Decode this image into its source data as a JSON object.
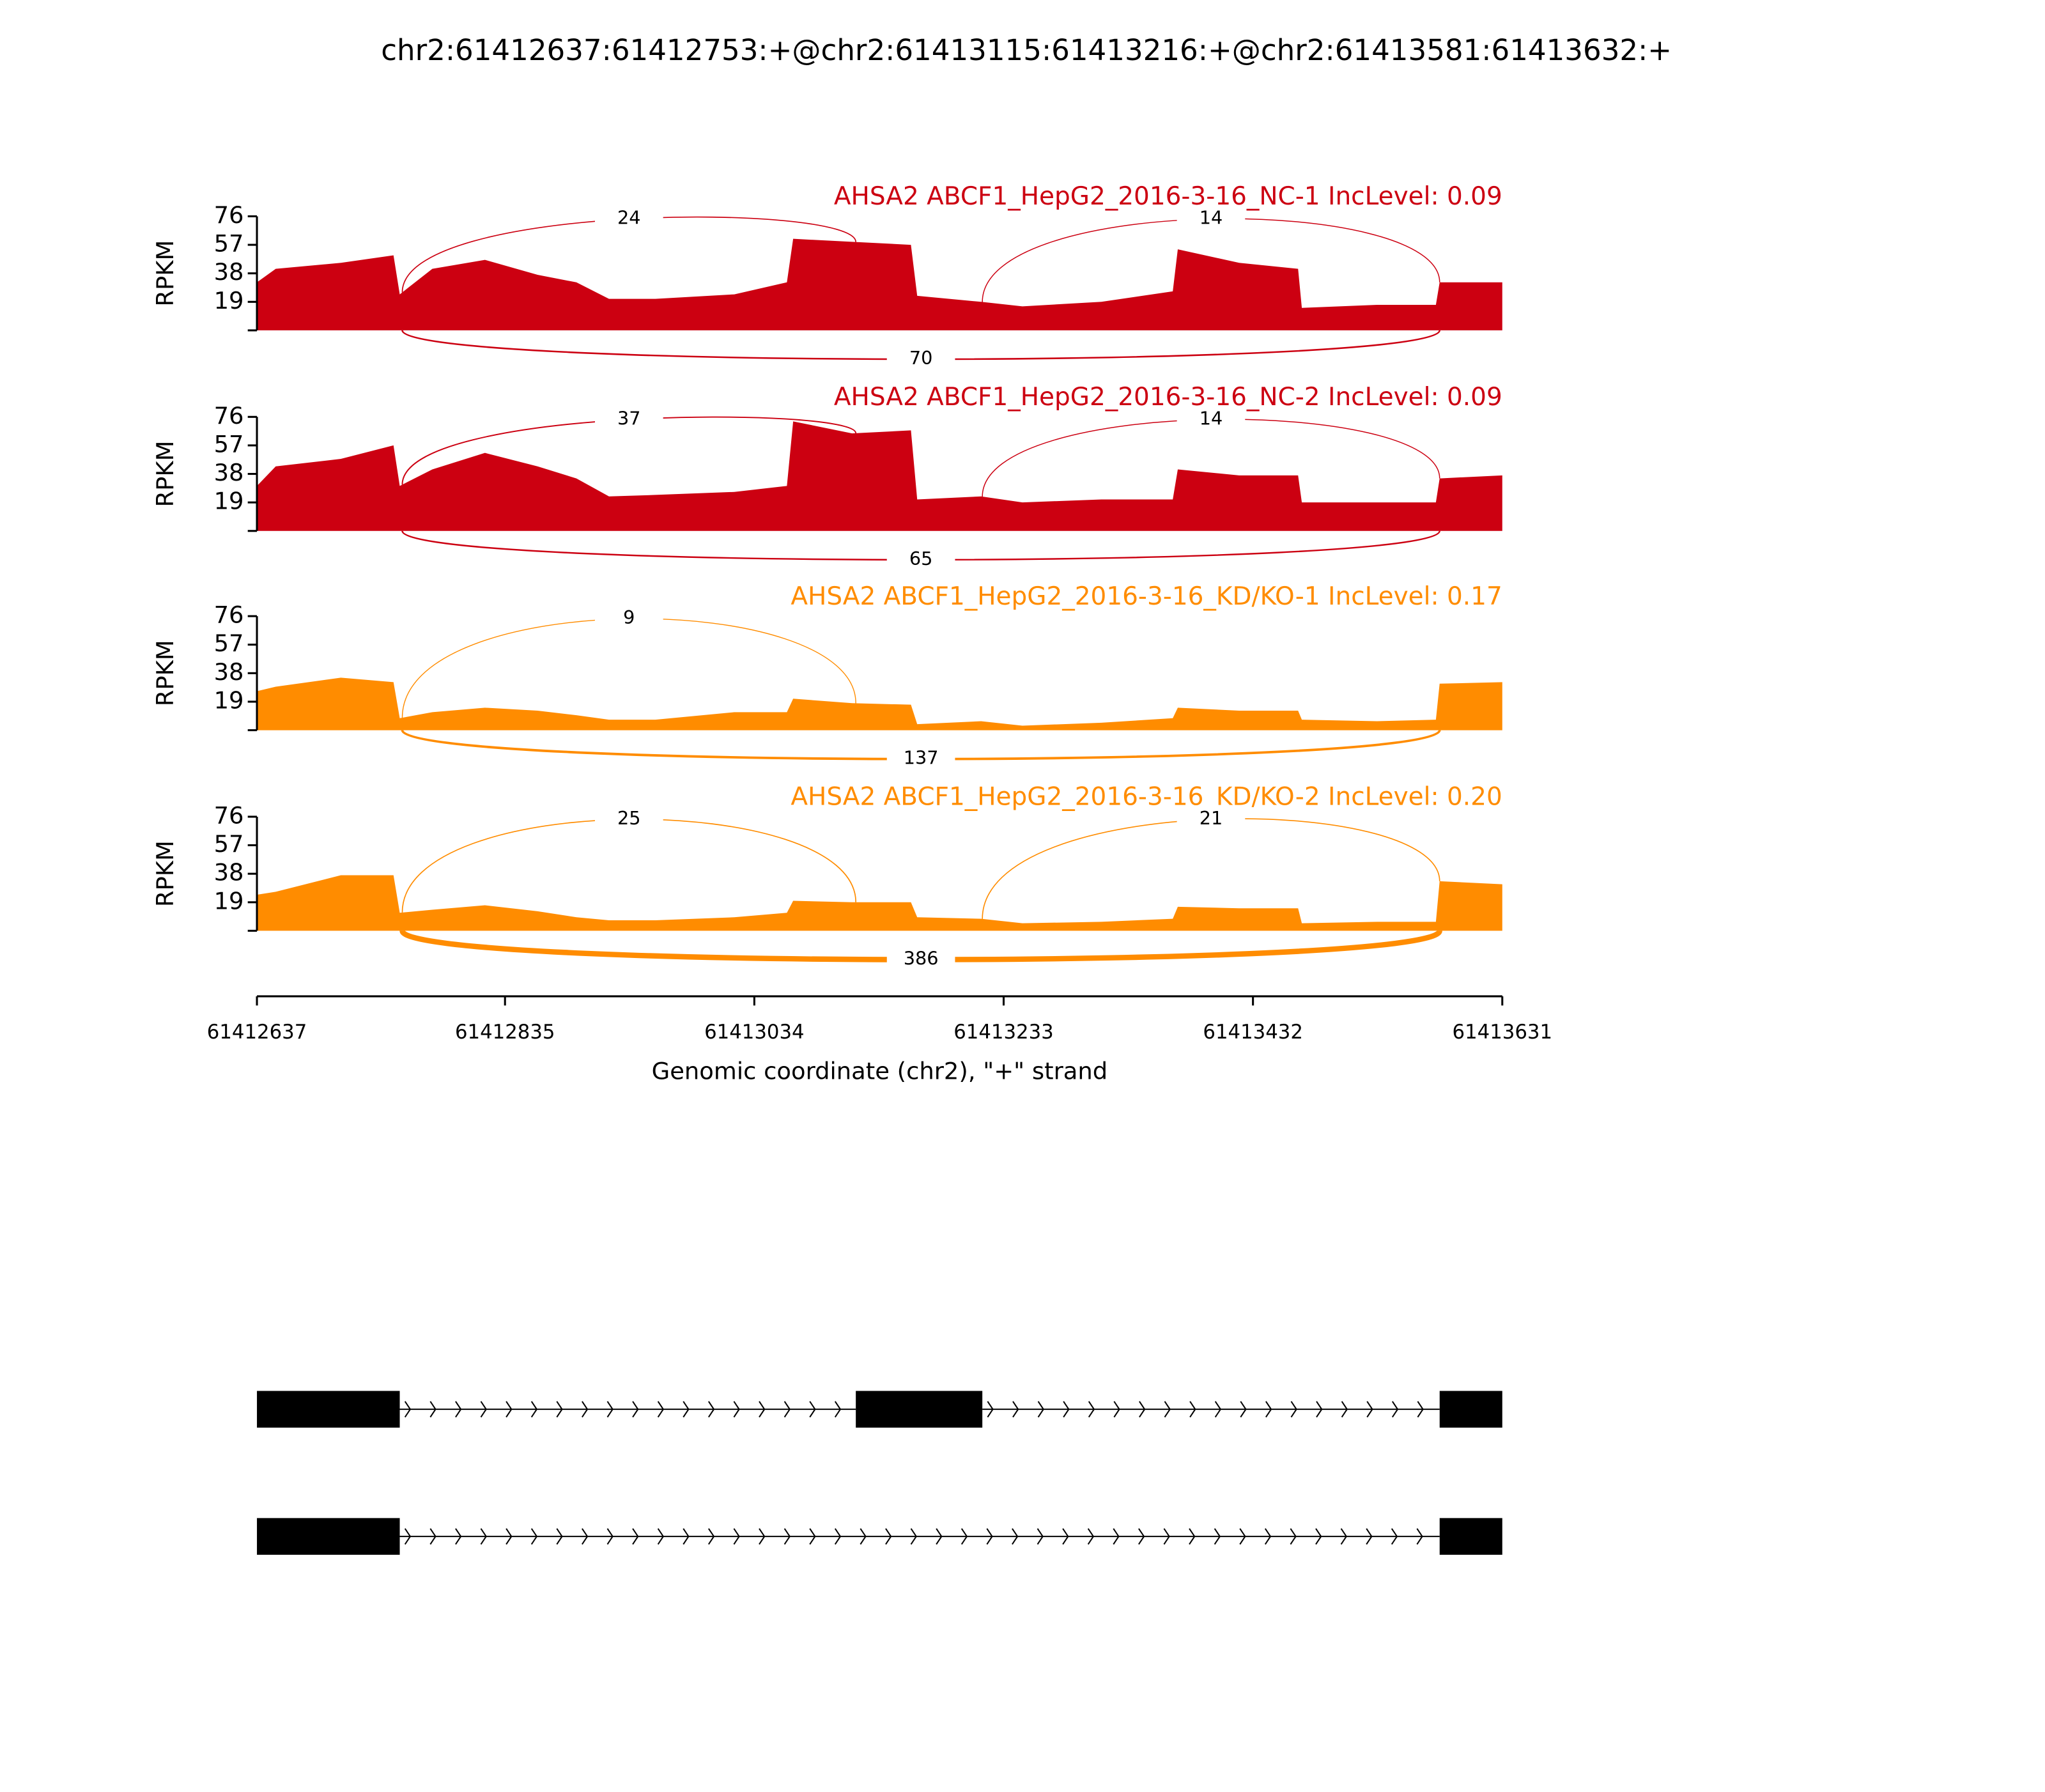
{
  "chart_data": {
    "type": "area",
    "title": "chr2:61412637:61412753:+@chr2:61413115:61413216:+@chr2:61413581:61413632:+",
    "ylabel": "RPKM",
    "xlabel": "Genomic coordinate (chr2), \"+\" strand",
    "xlim": [
      61412637,
      61413631
    ],
    "xticks": [
      61412637,
      61412835,
      61413034,
      61413233,
      61413432,
      61413631
    ],
    "ylim": [
      0,
      76
    ],
    "yticks": [
      19,
      38,
      57,
      76
    ],
    "x": [
      61412637,
      61412652,
      61412704,
      61412746,
      61412751,
      61412777,
      61412819,
      61412861,
      61412892,
      61412918,
      61412955,
      61413018,
      61413060,
      61413065,
      61413112,
      61413159,
      61413164,
      61413215,
      61413248,
      61413311,
      61413368,
      61413372,
      61413421,
      61413468,
      61413471,
      61413531,
      61413578,
      61413581,
      61413631
    ],
    "series": [
      {
        "name": "AHSA2 ABCF1_HepG2_2016-3-16_NC-1 IncLevel: 0.09",
        "color": "#cc0011",
        "values": [
          32,
          41,
          45,
          50,
          24,
          41,
          47,
          37,
          32,
          21,
          21,
          24,
          32,
          61,
          59,
          57,
          23,
          19,
          16,
          19,
          26,
          54,
          45,
          41,
          15,
          17,
          17,
          32,
          32
        ],
        "junctions": [
          {
            "from": 61412753,
            "to": 61413115,
            "count": 24
          },
          {
            "from": 61413216,
            "to": 61413581,
            "count": 14
          },
          {
            "from": 61412753,
            "to": 61413581,
            "count": 70
          }
        ]
      },
      {
        "name": "AHSA2 ABCF1_HepG2_2016-3-16_NC-2 IncLevel: 0.09",
        "color": "#cc0011",
        "values": [
          30,
          43,
          48,
          57,
          30,
          41,
          52,
          43,
          35,
          23,
          24,
          26,
          30,
          73,
          65,
          67,
          21,
          23,
          19,
          21,
          21,
          41,
          37,
          37,
          19,
          19,
          19,
          35,
          37
        ],
        "junctions": [
          {
            "from": 61412753,
            "to": 61413115,
            "count": 37
          },
          {
            "from": 61413216,
            "to": 61413581,
            "count": 14
          },
          {
            "from": 61412753,
            "to": 61413581,
            "count": 65
          }
        ]
      },
      {
        "name": "AHSA2 ABCF1_HepG2_2016-3-16_KD/KO-1 IncLevel: 0.17",
        "color": "#ff8c00",
        "values": [
          26,
          29,
          35,
          32,
          8,
          12,
          15,
          13,
          10,
          7,
          7,
          12,
          12,
          21,
          18,
          17,
          4,
          6,
          3,
          5,
          8,
          15,
          13,
          13,
          7,
          6,
          7,
          31,
          32
        ],
        "junctions": [
          {
            "from": 61412753,
            "to": 61413115,
            "count": 9
          },
          {
            "from": 61412753,
            "to": 61413581,
            "count": 137
          }
        ]
      },
      {
        "name": "AHSA2 ABCF1_HepG2_2016-3-16_KD/KO-2 IncLevel: 0.20",
        "color": "#ff8c00",
        "values": [
          24,
          26,
          37,
          37,
          12,
          14,
          17,
          13,
          9,
          7,
          7,
          9,
          12,
          20,
          19,
          19,
          9,
          8,
          5,
          6,
          8,
          16,
          15,
          15,
          5,
          6,
          6,
          33,
          31
        ],
        "junctions": [
          {
            "from": 61412753,
            "to": 61413115,
            "count": 25
          },
          {
            "from": 61413216,
            "to": 61413581,
            "count": 21
          },
          {
            "from": 61412753,
            "to": 61413581,
            "count": 386
          }
        ]
      }
    ],
    "isoforms": [
      [
        [
          61412637,
          61412751
        ],
        [
          61413115,
          61413216
        ],
        [
          61413581,
          61413631
        ]
      ],
      [
        [
          61412637,
          61412751
        ],
        [
          61413581,
          61413631
        ]
      ]
    ]
  }
}
